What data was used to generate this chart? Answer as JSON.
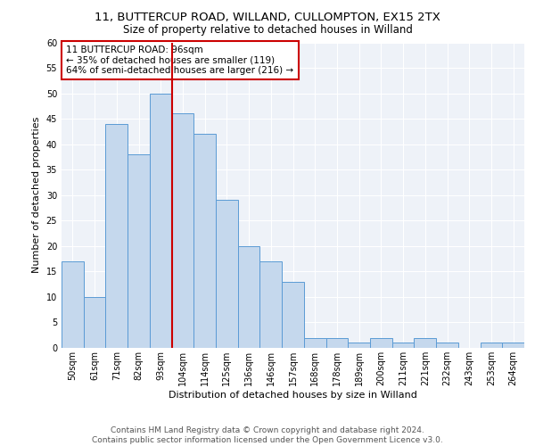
{
  "title1": "11, BUTTERCUP ROAD, WILLAND, CULLOMPTON, EX15 2TX",
  "title2": "Size of property relative to detached houses in Willand",
  "xlabel": "Distribution of detached houses by size in Willand",
  "ylabel": "Number of detached properties",
  "bin_labels": [
    "50sqm",
    "61sqm",
    "71sqm",
    "82sqm",
    "93sqm",
    "104sqm",
    "114sqm",
    "125sqm",
    "136sqm",
    "146sqm",
    "157sqm",
    "168sqm",
    "178sqm",
    "189sqm",
    "200sqm",
    "211sqm",
    "221sqm",
    "232sqm",
    "243sqm",
    "253sqm",
    "264sqm"
  ],
  "bar_values": [
    17,
    10,
    44,
    38,
    50,
    46,
    42,
    29,
    20,
    17,
    13,
    2,
    2,
    1,
    2,
    1,
    2,
    1,
    0,
    1,
    1
  ],
  "bar_color": "#c5d8ed",
  "bar_edge_color": "#5b9bd5",
  "vline_x": 4.5,
  "vline_color": "#cc0000",
  "annotation_text": "11 BUTTERCUP ROAD: 96sqm\n← 35% of detached houses are smaller (119)\n64% of semi-detached houses are larger (216) →",
  "annotation_box_color": "#ffffff",
  "annotation_box_edge_color": "#cc0000",
  "ylim": [
    0,
    60
  ],
  "yticks": [
    0,
    5,
    10,
    15,
    20,
    25,
    30,
    35,
    40,
    45,
    50,
    55,
    60
  ],
  "footer_text": "Contains HM Land Registry data © Crown copyright and database right 2024.\nContains public sector information licensed under the Open Government Licence v3.0.",
  "bg_color": "#eef2f8",
  "grid_color": "#ffffff",
  "title1_fontsize": 9.5,
  "title2_fontsize": 8.5,
  "xlabel_fontsize": 8,
  "ylabel_fontsize": 8,
  "tick_fontsize": 7,
  "annotation_fontsize": 7.5,
  "footer_fontsize": 6.5
}
